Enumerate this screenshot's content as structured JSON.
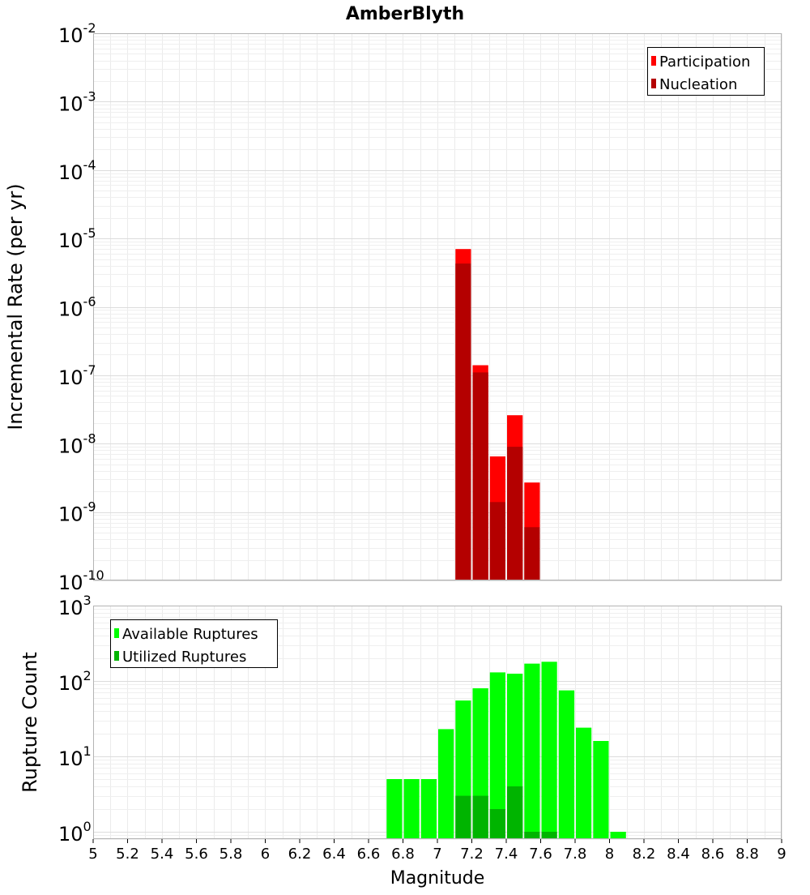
{
  "chart_data": [
    {
      "type": "bar",
      "title": "AmberBlyth",
      "xlabel": "",
      "ylabel": "Incremental Rate (per yr)",
      "yscale": "log",
      "ylim": [
        1e-10,
        0.01
      ],
      "xlim": [
        5,
        9
      ],
      "ytick_labels": [
        {
          "value": 1e-10,
          "base": "10",
          "exp": "-10"
        },
        {
          "value": 1e-09,
          "base": "10",
          "exp": "-9"
        },
        {
          "value": 1e-08,
          "base": "10",
          "exp": "-8"
        },
        {
          "value": 1e-07,
          "base": "10",
          "exp": "-7"
        },
        {
          "value": 1e-06,
          "base": "10",
          "exp": "-6"
        },
        {
          "value": 1e-05,
          "base": "10",
          "exp": "-5"
        },
        {
          "value": 0.0001,
          "base": "10",
          "exp": "-4"
        },
        {
          "value": 0.001,
          "base": "10",
          "exp": "-3"
        },
        {
          "value": 0.01,
          "base": "10",
          "exp": "-2"
        }
      ],
      "legend_position": "top-right",
      "grid": true,
      "series": [
        {
          "name": "Participation",
          "color": "#ff0000",
          "x": [
            7.15,
            7.25,
            7.35,
            7.45,
            7.55
          ],
          "values": [
            7e-06,
            1.4e-07,
            6.5e-09,
            2.6e-08,
            2.7e-09
          ]
        },
        {
          "name": "Nucleation",
          "color": "#b40000",
          "x": [
            7.15,
            7.25,
            7.35,
            7.45,
            7.55
          ],
          "values": [
            4.3e-06,
            1.1e-07,
            1.4e-09,
            9e-09,
            6e-10
          ]
        }
      ]
    },
    {
      "type": "bar",
      "title": "",
      "xlabel": "Magnitude",
      "ylabel": "Rupture Count",
      "yscale": "log",
      "ylim": [
        0.8,
        1000
      ],
      "xlim": [
        5,
        9
      ],
      "ytick_labels": [
        {
          "value": 1,
          "base": "10",
          "exp": "0"
        },
        {
          "value": 10,
          "base": "10",
          "exp": "1"
        },
        {
          "value": 100,
          "base": "10",
          "exp": "2"
        },
        {
          "value": 1000,
          "base": "10",
          "exp": "3"
        }
      ],
      "xticks": [
        "5",
        "5.2",
        "5.4",
        "5.6",
        "5.8",
        "6",
        "6.2",
        "6.4",
        "6.6",
        "6.8",
        "7",
        "7.2",
        "7.4",
        "7.6",
        "7.8",
        "8",
        "8.2",
        "8.4",
        "8.6",
        "8.8",
        "9"
      ],
      "legend_position": "top-left",
      "grid": true,
      "series": [
        {
          "name": "Available Ruptures",
          "color": "#00ff00",
          "x": [
            6.75,
            6.85,
            6.95,
            7.05,
            7.15,
            7.25,
            7.35,
            7.45,
            7.55,
            7.65,
            7.75,
            7.85,
            7.95,
            8.05
          ],
          "values": [
            5,
            5,
            5,
            23,
            55,
            80,
            130,
            125,
            170,
            180,
            75,
            24,
            16,
            1
          ]
        },
        {
          "name": "Utilized Ruptures",
          "color": "#00b400",
          "x": [
            7.15,
            7.25,
            7.35,
            7.45,
            7.55,
            7.65
          ],
          "values": [
            3,
            3,
            2,
            4,
            1,
            1
          ]
        }
      ]
    }
  ]
}
